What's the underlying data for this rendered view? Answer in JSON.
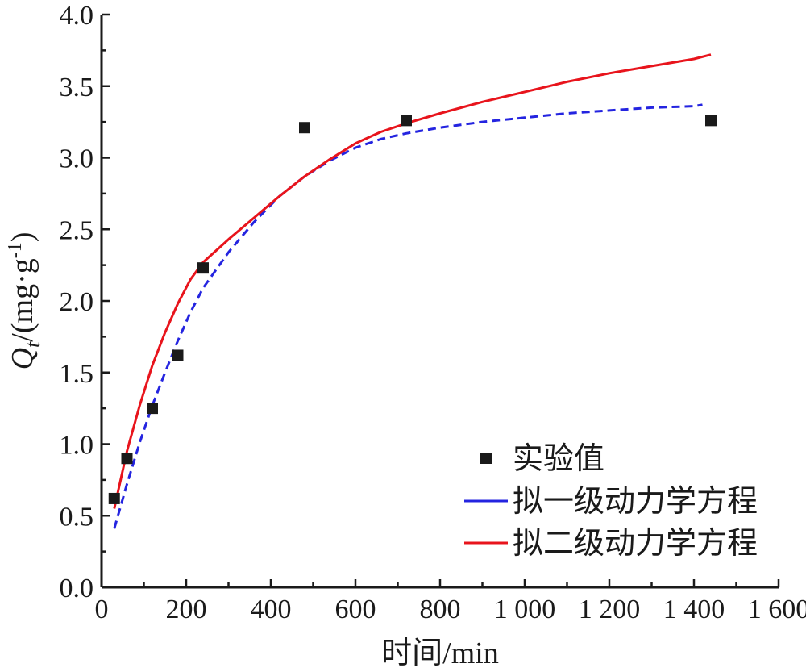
{
  "chart_data": {
    "type": "line",
    "xlabel": "时间/min",
    "ylabel": {
      "symbol": "Q",
      "subscript": "t",
      "unit_prefix": "/(mg·g",
      "unit_superscript": "-1",
      "unit_suffix": ")"
    },
    "xlim": [
      0,
      1600
    ],
    "ylim": [
      0.0,
      4.0
    ],
    "x_ticks": [
      {
        "value": 0,
        "label": "0"
      },
      {
        "value": 200,
        "label": "200"
      },
      {
        "value": 400,
        "label": "400"
      },
      {
        "value": 600,
        "label": "600"
      },
      {
        "value": 800,
        "label": "800"
      },
      {
        "value": 1000,
        "label": "1 000"
      },
      {
        "value": 1200,
        "label": "1 200"
      },
      {
        "value": 1400,
        "label": "1 400"
      },
      {
        "value": 1600,
        "label": "1 600"
      }
    ],
    "y_ticks": [
      {
        "value": 0.0,
        "label": "0.0"
      },
      {
        "value": 0.5,
        "label": "0.5"
      },
      {
        "value": 1.0,
        "label": "1.0"
      },
      {
        "value": 1.5,
        "label": "1.5"
      },
      {
        "value": 2.0,
        "label": "2.0"
      },
      {
        "value": 2.5,
        "label": "2.5"
      },
      {
        "value": 3.0,
        "label": "3.0"
      },
      {
        "value": 3.5,
        "label": "3.5"
      },
      {
        "value": 4.0,
        "label": "4.0"
      }
    ],
    "grid": false,
    "legend_position": "bottom-right",
    "series": [
      {
        "name": "实验值",
        "kind": "scatter",
        "marker": "square",
        "color": "#1a1a1a",
        "x": [
          30,
          60,
          120,
          180,
          240,
          480,
          720,
          1440
        ],
        "y": [
          0.62,
          0.9,
          1.25,
          1.62,
          2.23,
          3.21,
          3.26,
          3.26
        ]
      },
      {
        "name": "拟一级动力学方程",
        "kind": "line",
        "style": "dashed",
        "color": "#2424e0",
        "x": [
          30,
          60,
          90,
          120,
          150,
          180,
          210,
          240,
          300,
          360,
          420,
          480,
          540,
          600,
          660,
          720,
          800,
          900,
          1000,
          1100,
          1200,
          1300,
          1400,
          1420
        ],
        "y": [
          0.41,
          0.72,
          1.01,
          1.27,
          1.5,
          1.72,
          1.92,
          2.09,
          2.34,
          2.55,
          2.73,
          2.87,
          2.98,
          3.07,
          3.13,
          3.17,
          3.21,
          3.25,
          3.28,
          3.31,
          3.33,
          3.35,
          3.36,
          3.37
        ]
      },
      {
        "name": "拟二级动力学方程",
        "kind": "line",
        "style": "solid",
        "color": "#e8141c",
        "x": [
          30,
          60,
          90,
          120,
          150,
          180,
          210,
          240,
          300,
          360,
          420,
          480,
          540,
          600,
          660,
          720,
          800,
          900,
          1000,
          1100,
          1200,
          1300,
          1400,
          1440
        ],
        "y": [
          0.55,
          0.95,
          1.27,
          1.55,
          1.78,
          1.98,
          2.15,
          2.27,
          2.43,
          2.58,
          2.73,
          2.87,
          2.99,
          3.1,
          3.18,
          3.24,
          3.31,
          3.39,
          3.46,
          3.53,
          3.59,
          3.64,
          3.69,
          3.72
        ]
      }
    ]
  }
}
